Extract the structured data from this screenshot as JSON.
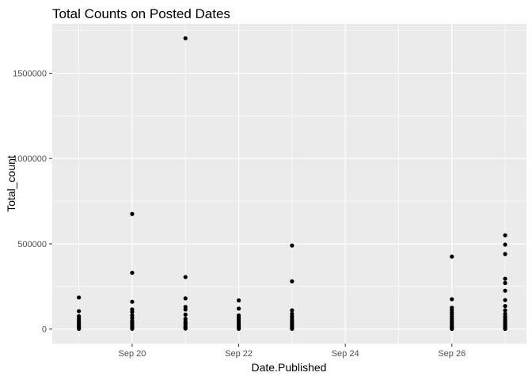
{
  "chart_data": {
    "type": "scatter",
    "title": "Total Counts on Posted Dates",
    "xlabel": "Date.Published",
    "ylabel": "Total_count",
    "x_ticks": [
      "Sep 20",
      "Sep 22",
      "Sep 24",
      "Sep 26"
    ],
    "x_tick_values": [
      20,
      22,
      24,
      26
    ],
    "y_ticks": [
      "0",
      "500000",
      "1000000",
      "1500000"
    ],
    "y_tick_values": [
      0,
      500000,
      1000000,
      1500000
    ],
    "xlim": [
      18.5,
      27.4
    ],
    "ylim": [
      -85000,
      1790000
    ],
    "grid": true,
    "panel_background": "#ebebeb",
    "grid_color": "#ffffff",
    "point_color": "#000000",
    "points": [
      {
        "x": 19,
        "y": 185000
      },
      {
        "x": 19,
        "y": 105000
      },
      {
        "x": 19,
        "y": 75000
      },
      {
        "x": 19,
        "y": 60000
      },
      {
        "x": 19,
        "y": 48000
      },
      {
        "x": 19,
        "y": 38000
      },
      {
        "x": 19,
        "y": 28000
      },
      {
        "x": 19,
        "y": 20000
      },
      {
        "x": 19,
        "y": 12000
      },
      {
        "x": 19,
        "y": 6000
      },
      {
        "x": 19,
        "y": 2000
      },
      {
        "x": 20,
        "y": 675000
      },
      {
        "x": 20,
        "y": 330000
      },
      {
        "x": 20,
        "y": 160000
      },
      {
        "x": 20,
        "y": 115000
      },
      {
        "x": 20,
        "y": 100000
      },
      {
        "x": 20,
        "y": 80000
      },
      {
        "x": 20,
        "y": 65000
      },
      {
        "x": 20,
        "y": 50000
      },
      {
        "x": 20,
        "y": 40000
      },
      {
        "x": 20,
        "y": 30000
      },
      {
        "x": 20,
        "y": 20000
      },
      {
        "x": 20,
        "y": 12000
      },
      {
        "x": 20,
        "y": 6000
      },
      {
        "x": 20,
        "y": 2000
      },
      {
        "x": 21,
        "y": 1705000
      },
      {
        "x": 21,
        "y": 305000
      },
      {
        "x": 21,
        "y": 180000
      },
      {
        "x": 21,
        "y": 130000
      },
      {
        "x": 21,
        "y": 115000
      },
      {
        "x": 21,
        "y": 85000
      },
      {
        "x": 21,
        "y": 60000
      },
      {
        "x": 21,
        "y": 45000
      },
      {
        "x": 21,
        "y": 35000
      },
      {
        "x": 21,
        "y": 25000
      },
      {
        "x": 21,
        "y": 15000
      },
      {
        "x": 21,
        "y": 8000
      },
      {
        "x": 21,
        "y": 3000
      },
      {
        "x": 22,
        "y": 168000
      },
      {
        "x": 22,
        "y": 120000
      },
      {
        "x": 22,
        "y": 80000
      },
      {
        "x": 22,
        "y": 68000
      },
      {
        "x": 22,
        "y": 58000
      },
      {
        "x": 22,
        "y": 48000
      },
      {
        "x": 22,
        "y": 38000
      },
      {
        "x": 22,
        "y": 28000
      },
      {
        "x": 22,
        "y": 20000
      },
      {
        "x": 22,
        "y": 12000
      },
      {
        "x": 22,
        "y": 6000
      },
      {
        "x": 22,
        "y": 2000
      },
      {
        "x": 23,
        "y": 490000
      },
      {
        "x": 23,
        "y": 280000
      },
      {
        "x": 23,
        "y": 110000
      },
      {
        "x": 23,
        "y": 90000
      },
      {
        "x": 23,
        "y": 75000
      },
      {
        "x": 23,
        "y": 62000
      },
      {
        "x": 23,
        "y": 50000
      },
      {
        "x": 23,
        "y": 40000
      },
      {
        "x": 23,
        "y": 30000
      },
      {
        "x": 23,
        "y": 22000
      },
      {
        "x": 23,
        "y": 14000
      },
      {
        "x": 23,
        "y": 7000
      },
      {
        "x": 23,
        "y": 2000
      },
      {
        "x": 26,
        "y": 425000
      },
      {
        "x": 26,
        "y": 175000
      },
      {
        "x": 26,
        "y": 125000
      },
      {
        "x": 26,
        "y": 110000
      },
      {
        "x": 26,
        "y": 98000
      },
      {
        "x": 26,
        "y": 85000
      },
      {
        "x": 26,
        "y": 72000
      },
      {
        "x": 26,
        "y": 60000
      },
      {
        "x": 26,
        "y": 50000
      },
      {
        "x": 26,
        "y": 40000
      },
      {
        "x": 26,
        "y": 30000
      },
      {
        "x": 26,
        "y": 20000
      },
      {
        "x": 26,
        "y": 12000
      },
      {
        "x": 26,
        "y": 5000
      },
      {
        "x": 26,
        "y": 1000
      },
      {
        "x": 27,
        "y": 550000
      },
      {
        "x": 27,
        "y": 495000
      },
      {
        "x": 27,
        "y": 440000
      },
      {
        "x": 27,
        "y": 295000
      },
      {
        "x": 27,
        "y": 270000
      },
      {
        "x": 27,
        "y": 225000
      },
      {
        "x": 27,
        "y": 170000
      },
      {
        "x": 27,
        "y": 135000
      },
      {
        "x": 27,
        "y": 110000
      },
      {
        "x": 27,
        "y": 90000
      },
      {
        "x": 27,
        "y": 75000
      },
      {
        "x": 27,
        "y": 62000
      },
      {
        "x": 27,
        "y": 50000
      },
      {
        "x": 27,
        "y": 40000
      },
      {
        "x": 27,
        "y": 30000
      },
      {
        "x": 27,
        "y": 20000
      },
      {
        "x": 27,
        "y": 12000
      },
      {
        "x": 27,
        "y": 5000
      },
      {
        "x": 27,
        "y": 1000
      }
    ]
  }
}
